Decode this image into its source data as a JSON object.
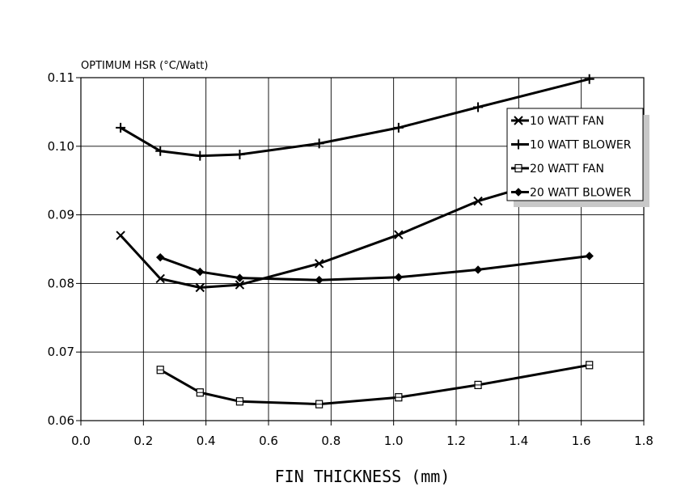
{
  "chart_data": {
    "type": "line",
    "ylabel": "OPTIMUM HSR (°C/Watt)",
    "xlabel": "FIN THICKNESS (mm)",
    "xlim": [
      0.0,
      1.8
    ],
    "ylim": [
      0.06,
      0.11
    ],
    "x_ticks": [
      "0.0",
      "0.2",
      "0.4",
      "0.6",
      "0.8",
      "1.0",
      "1.2",
      "1.4",
      "1.6",
      "1.8"
    ],
    "y_ticks": [
      "0.06",
      "0.07",
      "0.08",
      "0.09",
      "0.10",
      "0.11"
    ],
    "grid": true,
    "legend_position": "top-right",
    "series": [
      {
        "name": "10 WATT FAN",
        "marker": "x",
        "points": [
          [
            0.127,
            0.087
          ],
          [
            0.254,
            0.0807
          ],
          [
            0.381,
            0.0794
          ],
          [
            0.508,
            0.0798
          ],
          [
            0.762,
            0.0829
          ],
          [
            1.016,
            0.0871
          ],
          [
            1.27,
            0.092
          ],
          [
            1.626,
            0.0968
          ]
        ]
      },
      {
        "name": "10 WATT BLOWER",
        "marker": "plus",
        "points": [
          [
            0.127,
            0.1027
          ],
          [
            0.254,
            0.0993
          ],
          [
            0.381,
            0.0986
          ],
          [
            0.508,
            0.0988
          ],
          [
            0.762,
            0.1004
          ],
          [
            1.016,
            0.1027
          ],
          [
            1.27,
            0.1057
          ],
          [
            1.626,
            0.1098
          ]
        ]
      },
      {
        "name": "20 WATT FAN",
        "marker": "square",
        "points": [
          [
            0.254,
            0.0674
          ],
          [
            0.381,
            0.0641
          ],
          [
            0.508,
            0.0628
          ],
          [
            0.762,
            0.0624
          ],
          [
            1.016,
            0.0634
          ],
          [
            1.27,
            0.0652
          ],
          [
            1.626,
            0.0681
          ]
        ]
      },
      {
        "name": "20 WATT BLOWER",
        "marker": "diamond",
        "points": [
          [
            0.254,
            0.0838
          ],
          [
            0.381,
            0.0817
          ],
          [
            0.508,
            0.0808
          ],
          [
            0.762,
            0.0805
          ],
          [
            1.016,
            0.0809
          ],
          [
            1.27,
            0.082
          ],
          [
            1.626,
            0.084
          ]
        ]
      }
    ]
  }
}
